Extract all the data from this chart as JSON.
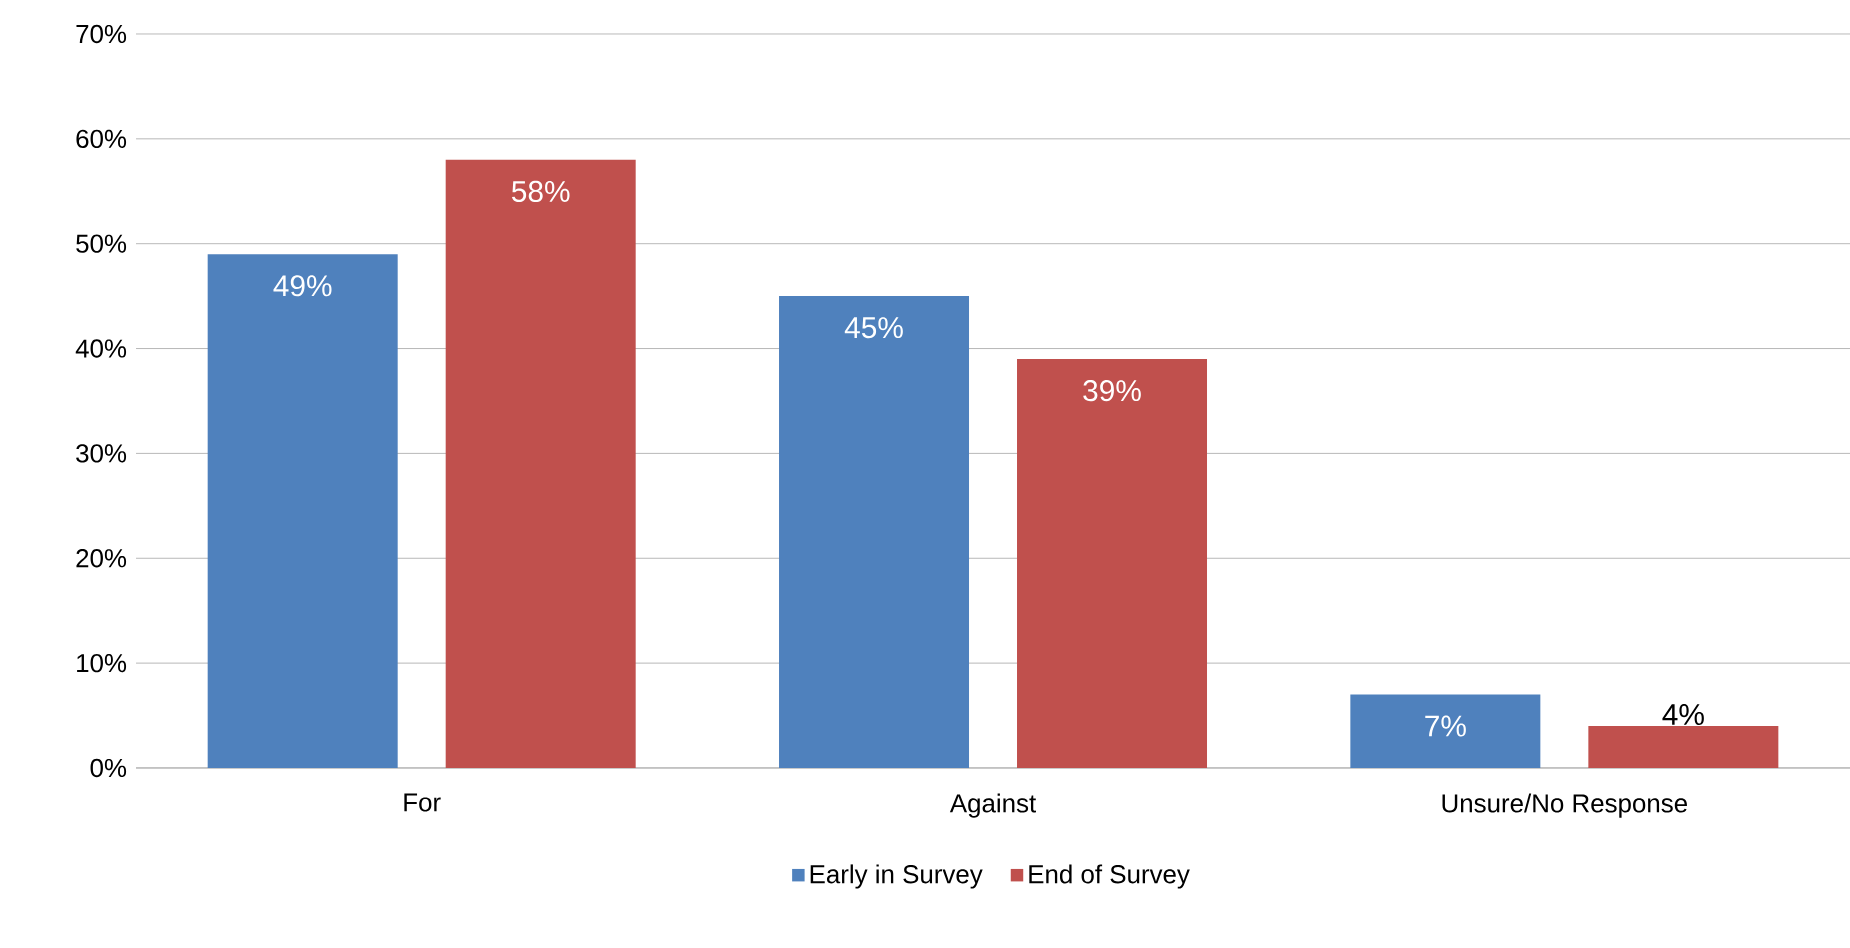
{
  "chart_data": {
    "type": "bar",
    "categories": [
      "For",
      "Against",
      "Unsure/No Response"
    ],
    "series": [
      {
        "name": "Early in Survey",
        "color": "#4f81bd",
        "values": [
          49,
          45,
          7
        ],
        "value_labels": [
          "49%",
          "45%",
          "7%"
        ]
      },
      {
        "name": "End of Survey",
        "color": "#c0504d",
        "values": [
          58,
          39,
          4
        ],
        "value_labels": [
          "58%",
          "39%",
          "4%"
        ]
      }
    ],
    "ylim": [
      0,
      70
    ],
    "yticks": [
      {
        "value": 0,
        "label": "0%"
      },
      {
        "value": 10,
        "label": "10%"
      },
      {
        "value": 20,
        "label": "20%"
      },
      {
        "value": 30,
        "label": "30%"
      },
      {
        "value": 40,
        "label": "40%"
      },
      {
        "value": 50,
        "label": "50%"
      },
      {
        "value": 60,
        "label": "60%"
      },
      {
        "value": 70,
        "label": "70%"
      }
    ],
    "grid": "y",
    "legend": "bottom"
  }
}
